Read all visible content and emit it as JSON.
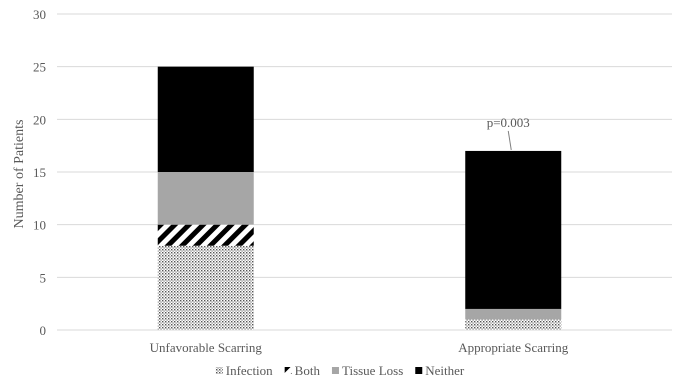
{
  "chart_data": {
    "type": "bar",
    "stacked": true,
    "categories": [
      "Unfavorable Scarring",
      "Appropriate Scarring"
    ],
    "series": [
      {
        "name": "Infection",
        "values": [
          8,
          1
        ],
        "pattern": "dots"
      },
      {
        "name": "Both",
        "values": [
          2,
          0
        ],
        "pattern": "diagonal-stripes"
      },
      {
        "name": "Tissue Loss",
        "values": [
          5,
          1
        ],
        "pattern": "solid-gray"
      },
      {
        "name": "Neither",
        "values": [
          10,
          15
        ],
        "pattern": "solid-black"
      }
    ],
    "title": "",
    "xlabel": "",
    "ylabel": "Number of Patients",
    "ylim": [
      0,
      30
    ],
    "yticks": [
      "0",
      "5",
      "10",
      "15",
      "20",
      "25",
      "30"
    ],
    "grid": true,
    "legend_position": "bottom",
    "annotations": [
      {
        "text": "p=0.003",
        "category": "Appropriate Scarring"
      }
    ],
    "colors": {
      "gray": "#a6a6a6",
      "black": "#000000",
      "grid": "#d9d9d9",
      "text": "#595959"
    }
  }
}
